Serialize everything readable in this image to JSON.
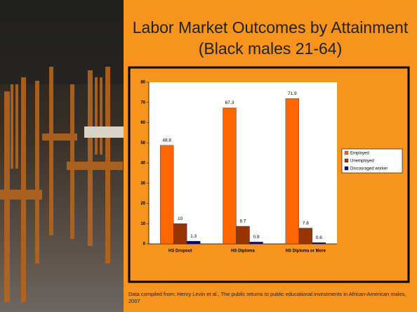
{
  "chart_data": {
    "type": "bar",
    "title": "Labor Market Outcomes by Attainment (Black males 21-64)",
    "categories": [
      "HS Dropout",
      "HS Diploma",
      "HS Diploma or More"
    ],
    "series": [
      {
        "name": "Employed",
        "color": "#ff6600",
        "values": [
          48.8,
          67.3,
          71.9
        ]
      },
      {
        "name": "Unemployed",
        "color": "#993300",
        "values": [
          10,
          8.7,
          7.8
        ]
      },
      {
        "name": "Discouraged worker",
        "color": "#000080",
        "values": [
          1.3,
          0.9,
          0.6
        ]
      }
    ],
    "ylim": [
      0,
      80
    ],
    "yticks": [
      0,
      10,
      20,
      30,
      40,
      50,
      60,
      70,
      80
    ],
    "note": "Data compiled from: Henry Levin et al., The public returns to public educational investments in African-American males, 2007"
  }
}
